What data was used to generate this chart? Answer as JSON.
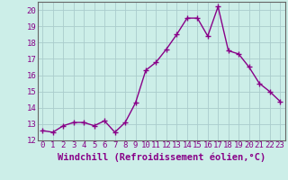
{
  "x": [
    0,
    1,
    2,
    3,
    4,
    5,
    6,
    7,
    8,
    9,
    10,
    11,
    12,
    13,
    14,
    15,
    16,
    17,
    18,
    19,
    20,
    21,
    22,
    23
  ],
  "y": [
    12.6,
    12.5,
    12.9,
    13.1,
    13.1,
    12.9,
    13.2,
    12.5,
    13.1,
    14.3,
    16.3,
    16.8,
    17.6,
    18.5,
    19.5,
    19.5,
    18.4,
    20.2,
    17.5,
    17.3,
    16.5,
    15.5,
    15.0,
    14.4
  ],
  "line_color": "#880088",
  "marker": "+",
  "marker_size": 4,
  "linewidth": 1.0,
  "xlabel": "Windchill (Refroidissement éolien,°C)",
  "ylim": [
    12,
    20.5
  ],
  "xlim": [
    -0.5,
    23.5
  ],
  "yticks": [
    12,
    13,
    14,
    15,
    16,
    17,
    18,
    19,
    20
  ],
  "xtick_labels": [
    "0",
    "1",
    "2",
    "3",
    "4",
    "5",
    "6",
    "7",
    "8",
    "9",
    "10",
    "11",
    "12",
    "13",
    "14",
    "15",
    "16",
    "17",
    "18",
    "19",
    "20",
    "21",
    "22",
    "23"
  ],
  "grid_color": "#aacccc",
  "bg_color": "#cceee8",
  "tick_fontsize": 6.5,
  "xlabel_fontsize": 7.5,
  "fig_bg_color": "#cceee8"
}
